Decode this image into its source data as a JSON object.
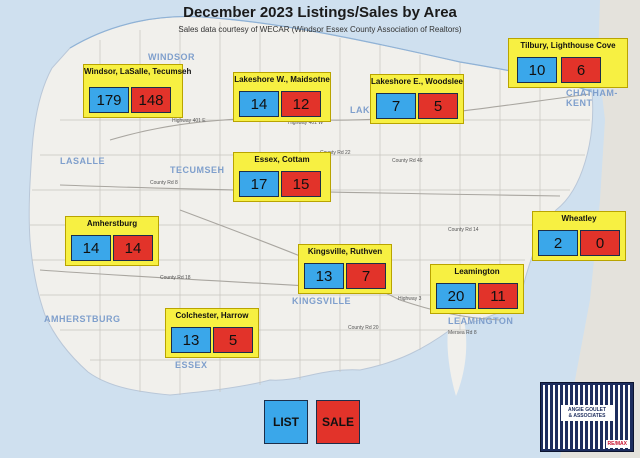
{
  "title": "December 2023 Listings/Sales by Area",
  "subtitle": "Sales data courtesy of WECAR (Windsor Essex County Association of Realtors)",
  "places": [
    "WINDSOR",
    "LASALLE",
    "TECUMSEH",
    "LAKESHORE",
    "CHATHAM-KENT",
    "KINGSVILLE",
    "LEAMINGTON",
    "AMHERSTBURG",
    "ESSEX"
  ],
  "roads": [
    "Highway 401 E",
    "Highway 401 W",
    "Highway 3",
    "County Rd 8",
    "County Rd 14",
    "County Rd 18",
    "County Rd 20",
    "County Rd 22",
    "County Rd 46",
    "Mersea Rd 8"
  ],
  "areas": [
    {
      "name": "Windsor, LaSalle, Tecumseh",
      "list": "179",
      "sale": "148"
    },
    {
      "name": "Lakeshore W., Maidsotne",
      "list": "14",
      "sale": "12"
    },
    {
      "name": "Lakeshore E., Woodslee",
      "list": "7",
      "sale": "5"
    },
    {
      "name": "Tilbury, Lighthouse Cove",
      "list": "10",
      "sale": "6"
    },
    {
      "name": "Essex, Cottam",
      "list": "17",
      "sale": "15"
    },
    {
      "name": "Amherstburg",
      "list": "14",
      "sale": "14"
    },
    {
      "name": "Wheatley",
      "list": "2",
      "sale": "0"
    },
    {
      "name": "Kingsville, Ruthven",
      "list": "13",
      "sale": "7"
    },
    {
      "name": "Leamington",
      "list": "20",
      "sale": "11"
    },
    {
      "name": "Colchester, Harrow",
      "list": "13",
      "sale": "5"
    }
  ],
  "legend": {
    "list_label": "LIST",
    "sale_label": "SALE",
    "list_color": "#3aa7ea",
    "sale_color": "#e2332a"
  },
  "logo": {
    "name_line1": "ANGIE GOULET",
    "name_line2": "& ASSOCIATES",
    "brand": "RE/MAX"
  },
  "colors": {
    "water": "#cfe0ef",
    "land": "#f1f0ec",
    "card": "#f7f042"
  }
}
